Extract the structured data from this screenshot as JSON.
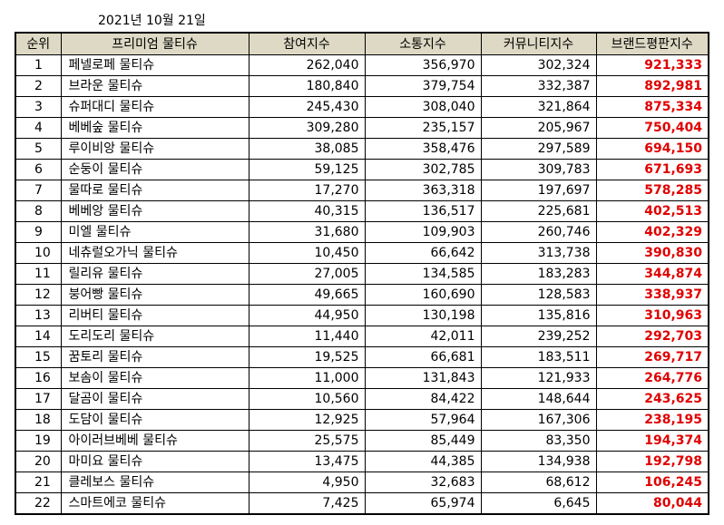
{
  "date": "2021년 10월 21일",
  "headers": [
    "순위",
    "프리미엄 물티슈",
    "참여지수",
    "소통지수",
    "커뮤니티지수",
    "브랜드평판지수"
  ],
  "rows": [
    [
      "1",
      "페넬로페 물티슈",
      "262,040",
      "356,970",
      "302,324",
      "921,333"
    ],
    [
      "2",
      "브라운 물티슈",
      "180,840",
      "379,754",
      "332,387",
      "892,981"
    ],
    [
      "3",
      "슈퍼대디 물티슈",
      "245,430",
      "308,040",
      "321,864",
      "875,334"
    ],
    [
      "4",
      "베베숲 물티슈",
      "309,280",
      "235,157",
      "205,967",
      "750,404"
    ],
    [
      "5",
      "루이비앙 물티슈",
      "38,085",
      "358,476",
      "297,589",
      "694,150"
    ],
    [
      "6",
      "순둥이 물티슈",
      "59,125",
      "302,785",
      "309,783",
      "671,693"
    ],
    [
      "7",
      "물따로 물티슈",
      "17,270",
      "363,318",
      "197,697",
      "578,285"
    ],
    [
      "8",
      "베베앙 물티슈",
      "40,315",
      "136,517",
      "225,681",
      "402,513"
    ],
    [
      "9",
      "미엘 물티슈",
      "31,680",
      "109,903",
      "260,746",
      "402,329"
    ],
    [
      "10",
      "네츄럴오가닉 물티슈",
      "10,450",
      "66,642",
      "313,738",
      "390,830"
    ],
    [
      "11",
      "릴리유 물티슈",
      "27,005",
      "134,585",
      "183,283",
      "344,874"
    ],
    [
      "12",
      "붕어빵 물티슈",
      "49,665",
      "160,690",
      "128,583",
      "338,937"
    ],
    [
      "13",
      "리버티 물티슈",
      "44,950",
      "130,198",
      "135,816",
      "310,963"
    ],
    [
      "14",
      "도리도리 물티슈",
      "11,440",
      "42,011",
      "239,252",
      "292,703"
    ],
    [
      "15",
      "꿈토리 물티슈",
      "19,525",
      "66,681",
      "183,511",
      "269,717"
    ],
    [
      "16",
      "보솜이 물티슈",
      "11,000",
      "131,843",
      "121,933",
      "264,776"
    ],
    [
      "17",
      "달곰이 물티슈",
      "10,560",
      "84,422",
      "148,644",
      "243,625"
    ],
    [
      "18",
      "도담이 물티슈",
      "12,925",
      "57,964",
      "167,306",
      "238,195"
    ],
    [
      "19",
      "아이러브베베 물티슈",
      "25,575",
      "85,449",
      "83,350",
      "194,374"
    ],
    [
      "20",
      "마미요 물티슈",
      "13,475",
      "44,385",
      "134,938",
      "192,798"
    ],
    [
      "21",
      "클레보스 물티슈",
      "4,950",
      "32,683",
      "68,612",
      "106,245"
    ],
    [
      "22",
      "스마트에코 물티슈",
      "7,425",
      "65,974",
      "6,645",
      "80,044"
    ]
  ],
  "colors": {
    "header_bg": "#ddd9c4",
    "brand_text": "#e00000"
  }
}
